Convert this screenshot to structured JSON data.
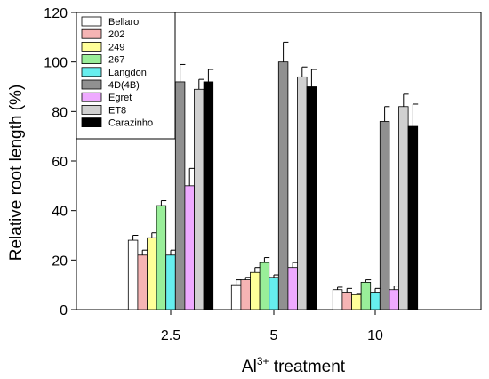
{
  "chart_data": {
    "type": "bar",
    "categories": [
      "2.5",
      "5",
      "10"
    ],
    "xlabel_main": "Al",
    "xlabel_sup": "3+",
    "xlabel_rest": " treatment",
    "ylabel": "Relative root length (%)",
    "ylim": [
      0,
      120
    ],
    "yticks": [
      0,
      20,
      40,
      60,
      80,
      100,
      120
    ],
    "grid": false,
    "legend_position": "top-left",
    "series": [
      {
        "name": "Bellaroi",
        "color": "#ffffff",
        "values": [
          28,
          10,
          8
        ],
        "errors": [
          2,
          2,
          1
        ]
      },
      {
        "name": "202",
        "color": "#f5b4b4",
        "values": [
          22,
          12,
          7
        ],
        "errors": [
          2,
          1,
          1.5
        ]
      },
      {
        "name": "249",
        "color": "#ffff99",
        "values": [
          29,
          15,
          6
        ],
        "errors": [
          2,
          2,
          0.5
        ]
      },
      {
        "name": "267",
        "color": "#99ee99",
        "values": [
          42,
          19,
          11
        ],
        "errors": [
          2,
          2,
          1
        ]
      },
      {
        "name": "Langdon",
        "color": "#66eeee",
        "values": [
          22,
          13,
          7
        ],
        "errors": [
          2,
          1,
          1.5
        ]
      },
      {
        "name": "4D(4B)",
        "color": "#909090",
        "values": [
          92,
          100,
          76
        ],
        "errors": [
          7,
          8,
          6
        ]
      },
      {
        "name": "Egret",
        "color": "#eeaaff",
        "values": [
          50,
          17,
          8
        ],
        "errors": [
          7,
          2,
          1.5
        ]
      },
      {
        "name": "ET8",
        "color": "#d0d0d0",
        "values": [
          89,
          94,
          82
        ],
        "errors": [
          4,
          4,
          5
        ]
      },
      {
        "name": "Carazinho",
        "color": "#000000",
        "values": [
          92,
          90,
          74
        ],
        "errors": [
          5,
          7,
          9
        ]
      }
    ]
  }
}
